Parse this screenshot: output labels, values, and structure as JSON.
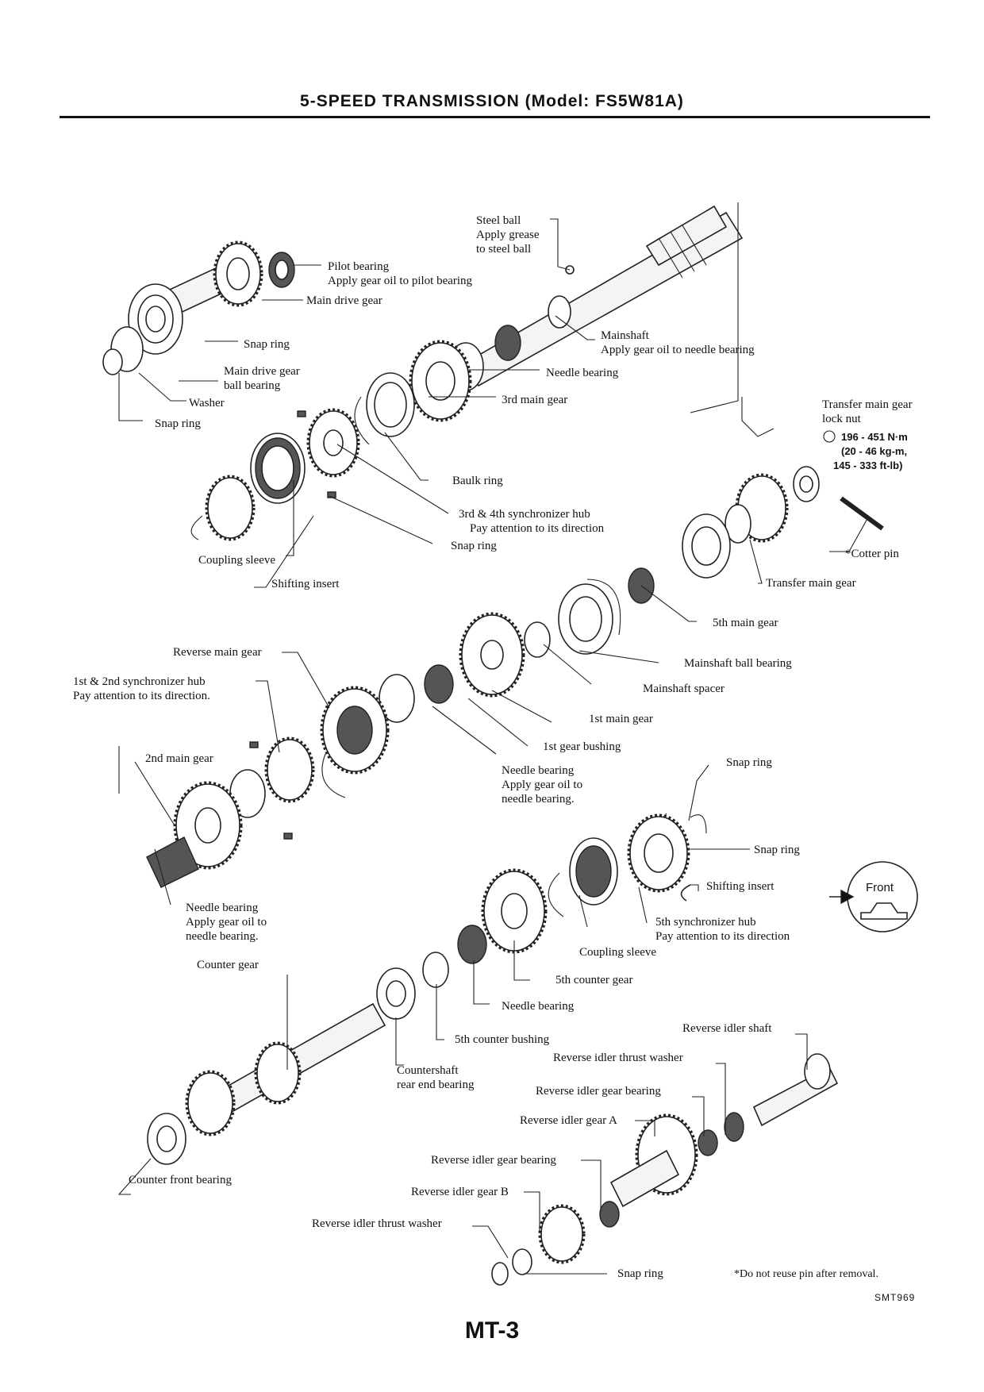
{
  "header": {
    "title": "5-SPEED TRANSMISSION (Model: FS5W81A)"
  },
  "labels": {
    "steel_ball": [
      "Steel ball",
      "Apply grease",
      "to steel ball"
    ],
    "pilot_bearing": [
      "Pilot bearing",
      "Apply gear oil to pilot bearing"
    ],
    "main_drive_gear": [
      "Main drive gear"
    ],
    "snap_ring_1": [
      "Snap ring"
    ],
    "main_drive_gear_ball_bearing": [
      "Main drive gear",
      "ball bearing"
    ],
    "washer": [
      "Washer"
    ],
    "snap_ring_2": [
      "Snap ring"
    ],
    "mainshaft": [
      "Mainshaft",
      "Apply gear oil to needle bearing"
    ],
    "needle_bearing_1": [
      "Needle bearing"
    ],
    "third_main_gear": [
      "3rd main gear"
    ],
    "transfer_main_gear_lock_nut": [
      "Transfer main gear",
      "lock nut"
    ],
    "torque_spec": [
      "196 - 451 N·m",
      "(20 - 46 kg-m,",
      "145 - 333 ft-lb)"
    ],
    "baulk_ring": [
      "Baulk ring"
    ],
    "synchro_hub_34": [
      "3rd & 4th synchronizer hub",
      "Pay attention to its direction"
    ],
    "snap_ring_3": [
      "Snap ring"
    ],
    "cotter_pin": [
      "*Cotter pin"
    ],
    "coupling_sleeve_1": [
      "Coupling sleeve"
    ],
    "shifting_insert_1": [
      "Shifting insert"
    ],
    "transfer_main_gear": [
      "Transfer main gear"
    ],
    "fifth_main_gear": [
      "5th main gear"
    ],
    "reverse_main_gear": [
      "Reverse main gear"
    ],
    "mainshaft_ball_bearing": [
      "Mainshaft ball bearing"
    ],
    "synchro_hub_12": [
      "1st & 2nd synchronizer hub",
      "Pay attention to its direction."
    ],
    "mainshaft_spacer": [
      "Mainshaft spacer"
    ],
    "first_main_gear": [
      "1st main gear"
    ],
    "first_gear_bushing": [
      "1st gear bushing"
    ],
    "second_main_gear": [
      "2nd main gear"
    ],
    "needle_bearing_2": [
      "Needle bearing",
      "Apply gear oil to",
      "needle bearing."
    ],
    "snap_ring_4": [
      "Snap ring"
    ],
    "snap_ring_5": [
      "Snap ring"
    ],
    "shifting_insert_2": [
      "Shifting insert"
    ],
    "front_badge": [
      "Front"
    ],
    "needle_bearing_3": [
      "Needle bearing",
      "Apply gear oil to",
      "needle bearing."
    ],
    "synchro_hub_5": [
      "5th synchronizer hub",
      "Pay attention to its direction"
    ],
    "coupling_sleeve_2": [
      "Coupling sleeve"
    ],
    "counter_gear": [
      "Counter gear"
    ],
    "fifth_counter_gear": [
      "5th counter gear"
    ],
    "needle_bearing_4": [
      "Needle bearing"
    ],
    "fifth_counter_bushing": [
      "5th counter bushing"
    ],
    "reverse_idler_shaft": [
      "Reverse idler shaft"
    ],
    "countershaft_rear_bearing": [
      "Countershaft",
      "rear end bearing"
    ],
    "reverse_idler_thrust_washer_1": [
      "Reverse idler thrust washer"
    ],
    "reverse_idler_gear_bearing_1": [
      "Reverse idler gear bearing"
    ],
    "reverse_idler_gear_a": [
      "Reverse idler gear A"
    ],
    "reverse_idler_gear_bearing_2": [
      "Reverse idler gear bearing"
    ],
    "counter_front_bearing": [
      "Counter front bearing"
    ],
    "reverse_idler_gear_b": [
      "Reverse idler gear B"
    ],
    "reverse_idler_thrust_washer_2": [
      "Reverse idler thrust washer"
    ],
    "snap_ring_6": [
      "Snap ring"
    ]
  },
  "footnote": "*Do not reuse pin after removal.",
  "figure_code": "SMT969",
  "page_number": "MT-3"
}
